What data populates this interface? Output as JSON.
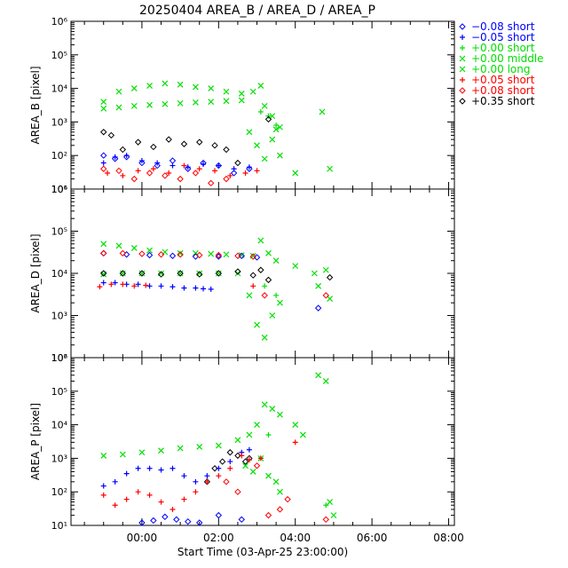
{
  "chart_data": {
    "type": "scatter",
    "title": "20250404 AREA_B / AREA_D / AREA_P",
    "xlabel": "Start Time (03-Apr-25 23:00:00)",
    "x_units": "hours since 03-Apr-25 23:00:00",
    "xlim": [
      -0.85,
      9.15
    ],
    "x_ticks": [
      1,
      3,
      5,
      7,
      9
    ],
    "x_tick_labels": [
      "00:00",
      "02:00",
      "04:00",
      "06:00",
      "08:00"
    ],
    "legend_position": "top-right, outside plot",
    "legend": [
      {
        "label": "−0.08 short",
        "symbol": "diamond",
        "color": "#0000ff"
      },
      {
        "label": "−0.05 short",
        "symbol": "plus",
        "color": "#0000ff"
      },
      {
        "label": "+0.00 short",
        "symbol": "plus",
        "color": "#00e000"
      },
      {
        "label": "+0.00 middle",
        "symbol": "cross",
        "color": "#00e000"
      },
      {
        "label": "+0.00 long",
        "symbol": "cross",
        "color": "#00e000"
      },
      {
        "label": "+0.05 short",
        "symbol": "plus",
        "color": "#ff0000"
      },
      {
        "label": "+0.08 short",
        "symbol": "diamond",
        "color": "#ff0000"
      },
      {
        "label": "+0.35 short",
        "symbol": "diamond",
        "color": "#000000"
      }
    ],
    "panels": [
      {
        "ylabel": "AREA_B [pixel]",
        "ylim": [
          10,
          1000000
        ],
        "y_tick_labels": [
          "10¹",
          "10²",
          "10³",
          "10⁴",
          "10⁵",
          "10⁶"
        ],
        "series": [
          {
            "name": "+0.00 middle",
            "symbol": "cross",
            "color": "#00e000",
            "x": [
              0.0,
              0.4,
              0.8,
              1.2,
              1.6,
              2.0,
              2.4,
              2.8,
              3.2,
              3.6,
              3.9,
              4.1,
              4.2,
              4.4,
              4.5,
              4.6
            ],
            "y": [
              4000,
              8000,
              10000,
              12000,
              14000,
              13000,
              11000,
              10000,
              8000,
              7000,
              8000,
              12000,
              3000,
              1500,
              600,
              700
            ]
          },
          {
            "name": "+0.00 long",
            "symbol": "cross",
            "color": "#00e000",
            "x": [
              0.0,
              0.4,
              0.8,
              1.2,
              1.6,
              2.0,
              2.4,
              2.8,
              3.2,
              3.6,
              3.8,
              4.0,
              4.2,
              4.4,
              4.6,
              5.0,
              5.7,
              5.9
            ],
            "y": [
              2500,
              2700,
              3000,
              3200,
              3400,
              3600,
              3800,
              4000,
              4200,
              4400,
              500,
              200,
              80,
              300,
              100,
              30,
              2000,
              40
            ]
          },
          {
            "name": "+0.00 short",
            "symbol": "plus",
            "color": "#00e000",
            "x": [
              4.1,
              4.3,
              4.5
            ],
            "y": [
              2000,
              1500,
              800
            ]
          },
          {
            "name": "+0.35 short",
            "symbol": "diamond",
            "color": "#000000",
            "x": [
              0.0,
              0.2,
              0.5,
              0.9,
              1.3,
              1.7,
              2.1,
              2.5,
              2.9,
              3.2,
              3.5,
              4.3
            ],
            "y": [
              500,
              400,
              150,
              250,
              180,
              300,
              220,
              250,
              200,
              150,
              60,
              1200
            ]
          },
          {
            "name": "−0.08 short",
            "symbol": "diamond",
            "color": "#0000ff",
            "x": [
              0.0,
              0.3,
              0.6,
              1.0,
              1.4,
              1.8,
              2.2,
              2.6,
              3.0,
              3.4,
              3.8
            ],
            "y": [
              100,
              80,
              90,
              60,
              50,
              70,
              40,
              60,
              50,
              30,
              40
            ]
          },
          {
            "name": "−0.05 short",
            "symbol": "plus",
            "color": "#0000ff",
            "x": [
              0.0,
              0.3,
              0.6,
              1.0,
              1.4,
              1.8,
              2.2,
              2.6,
              3.0,
              3.4,
              3.8
            ],
            "y": [
              60,
              90,
              100,
              70,
              60,
              50,
              45,
              55,
              50,
              40,
              45
            ]
          },
          {
            "name": "+0.05 short",
            "symbol": "plus",
            "color": "#ff0000",
            "x": [
              0.1,
              0.5,
              0.9,
              1.3,
              1.7,
              2.1,
              2.5,
              2.9,
              3.3,
              3.7,
              4.0
            ],
            "y": [
              30,
              25,
              35,
              40,
              30,
              50,
              40,
              35,
              25,
              30,
              35
            ]
          },
          {
            "name": "+0.08 short",
            "symbol": "diamond",
            "color": "#ff0000",
            "x": [
              0.0,
              0.4,
              0.8,
              1.2,
              1.6,
              2.0,
              2.4,
              2.8,
              3.2
            ],
            "y": [
              40,
              35,
              20,
              30,
              25,
              20,
              30,
              15,
              20
            ]
          }
        ]
      },
      {
        "ylabel": "AREA_D [pixel]",
        "ylim": [
          100,
          1000000
        ],
        "y_tick_labels": [
          "10²",
          "10³",
          "10⁴",
          "10⁵",
          "10⁶"
        ],
        "series": [
          {
            "name": "+0.00 middle",
            "symbol": "cross",
            "color": "#00e000",
            "x": [
              0.0,
              0.4,
              0.8,
              1.2,
              1.6,
              2.0,
              2.4,
              2.8,
              3.2,
              3.6,
              3.9,
              4.1,
              4.3,
              4.5,
              5.0,
              5.5,
              5.8
            ],
            "y": [
              50000,
              45000,
              40000,
              35000,
              32000,
              30000,
              30000,
              29000,
              28000,
              27000,
              26000,
              60000,
              30000,
              20000,
              15000,
              10000,
              12000
            ]
          },
          {
            "name": "+0.00 long",
            "symbol": "cross",
            "color": "#00e000",
            "x": [
              0.0,
              0.5,
              1.0,
              1.5,
              2.0,
              2.5,
              3.0,
              3.5,
              3.8,
              4.0,
              4.2,
              4.4,
              4.6,
              5.6,
              5.9
            ],
            "y": [
              9500,
              10000,
              10000,
              10000,
              10000,
              10000,
              10000,
              10000,
              3000,
              600,
              300,
              1000,
              2000,
              5000,
              2500
            ]
          },
          {
            "name": "+0.00 short",
            "symbol": "plus",
            "color": "#00e000",
            "x": [
              4.2,
              4.5
            ],
            "y": [
              5000,
              3000
            ]
          },
          {
            "name": "+0.35 short",
            "symbol": "diamond",
            "color": "#000000",
            "x": [
              0.0,
              0.5,
              1.0,
              1.5,
              2.0,
              2.5,
              3.0,
              3.5,
              3.9,
              4.1,
              4.3,
              5.9
            ],
            "y": [
              10000,
              10000,
              10000,
              9500,
              10000,
              9500,
              10000,
              11000,
              9000,
              12000,
              7000,
              8000
            ]
          },
          {
            "name": "−0.08 short",
            "symbol": "diamond",
            "color": "#0000ff",
            "x": [
              0.0,
              0.6,
              1.2,
              1.8,
              2.4,
              3.0,
              3.6,
              4.0,
              5.6
            ],
            "y": [
              30000,
              28000,
              27000,
              26000,
              25000,
              25000,
              26000,
              24000,
              1500
            ]
          },
          {
            "name": "−0.05 short",
            "symbol": "plus",
            "color": "#0000ff",
            "x": [
              0.0,
              0.3,
              0.6,
              0.9,
              1.2,
              1.5,
              1.8,
              2.1,
              2.4,
              2.6,
              2.8
            ],
            "y": [
              6000,
              6000,
              5500,
              5500,
              5000,
              5000,
              4800,
              4500,
              4500,
              4300,
              4200
            ]
          },
          {
            "name": "+0.05 short",
            "symbol": "plus",
            "color": "#ff0000",
            "x": [
              -0.1,
              0.2,
              0.5,
              0.8,
              1.1,
              3.9
            ],
            "y": [
              4800,
              5500,
              5500,
              5000,
              5200,
              5000
            ]
          },
          {
            "name": "+0.08 short",
            "symbol": "diamond",
            "color": "#ff0000",
            "x": [
              0.0,
              0.5,
              1.0,
              1.5,
              2.0,
              2.5,
              3.0,
              3.5,
              3.9,
              4.2,
              5.8
            ],
            "y": [
              30000,
              30000,
              29000,
              28000,
              28000,
              27000,
              27000,
              26000,
              25000,
              3000,
              3000
            ]
          }
        ]
      },
      {
        "ylabel": "AREA_P [pixel]",
        "ylim": [
          10,
          1000000
        ],
        "y_tick_labels": [
          "10¹",
          "10²",
          "10³",
          "10⁴",
          "10⁵",
          "10⁶"
        ],
        "series": [
          {
            "name": "+0.00 middle",
            "symbol": "cross",
            "color": "#00e000",
            "x": [
              0.0,
              0.5,
              1.0,
              1.5,
              2.0,
              2.5,
              3.0,
              3.5,
              3.8,
              4.0,
              4.2,
              4.4,
              4.6,
              5.0,
              5.2,
              5.6,
              5.8
            ],
            "y": [
              1200,
              1300,
              1500,
              1700,
              2000,
              2200,
              2400,
              3500,
              5000,
              10000,
              40000,
              30000,
              20000,
              10000,
              5000,
              300000,
              200000
            ]
          },
          {
            "name": "+0.00 long",
            "symbol": "cross",
            "color": "#00e000",
            "x": [
              3.7,
              3.9,
              4.1,
              4.3,
              4.5,
              4.6,
              5.9,
              6.0
            ],
            "y": [
              600,
              400,
              1000,
              300,
              200,
              100,
              50,
              20
            ]
          },
          {
            "name": "+0.00 short",
            "symbol": "plus",
            "color": "#00e000",
            "x": [
              4.3,
              5.8
            ],
            "y": [
              5000,
              40
            ]
          },
          {
            "name": "+0.35 short",
            "symbol": "diamond",
            "color": "#000000",
            "x": [
              2.7,
              2.9,
              3.1,
              3.3,
              3.5,
              3.7,
              3.8
            ],
            "y": [
              200,
              500,
              800,
              1500,
              1200,
              800,
              1000
            ]
          },
          {
            "name": "−0.08 short",
            "symbol": "diamond",
            "color": "#0000ff",
            "x": [
              1.0,
              1.3,
              1.6,
              1.9,
              2.2,
              2.5,
              3.0,
              3.6
            ],
            "y": [
              12,
              14,
              18,
              15,
              13,
              12,
              20,
              15
            ]
          },
          {
            "name": "−0.05 short",
            "symbol": "plus",
            "color": "#0000ff",
            "x": [
              0.0,
              0.3,
              0.6,
              0.9,
              1.2,
              1.5,
              1.8,
              2.1,
              2.4,
              2.7,
              3.0,
              3.3,
              3.6,
              3.8
            ],
            "y": [
              150,
              200,
              350,
              500,
              500,
              450,
              500,
              300,
              200,
              300,
              500,
              800,
              1500,
              1800
            ]
          },
          {
            "name": "+0.05 short",
            "symbol": "plus",
            "color": "#ff0000",
            "x": [
              0.0,
              0.3,
              0.6,
              0.9,
              1.2,
              1.5,
              1.8,
              2.1,
              2.4,
              2.7,
              3.0,
              3.3,
              3.6,
              3.8,
              4.1,
              5.0
            ],
            "y": [
              80,
              40,
              60,
              100,
              80,
              50,
              30,
              60,
              100,
              200,
              300,
              500,
              1200,
              900,
              1000,
              3000
            ]
          },
          {
            "name": "+0.08 short",
            "symbol": "diamond",
            "color": "#ff0000",
            "x": [
              3.2,
              3.5,
              4.0,
              4.3,
              4.6,
              4.8,
              5.8
            ],
            "y": [
              200,
              100,
              600,
              20,
              30,
              60,
              15
            ]
          }
        ]
      }
    ]
  }
}
